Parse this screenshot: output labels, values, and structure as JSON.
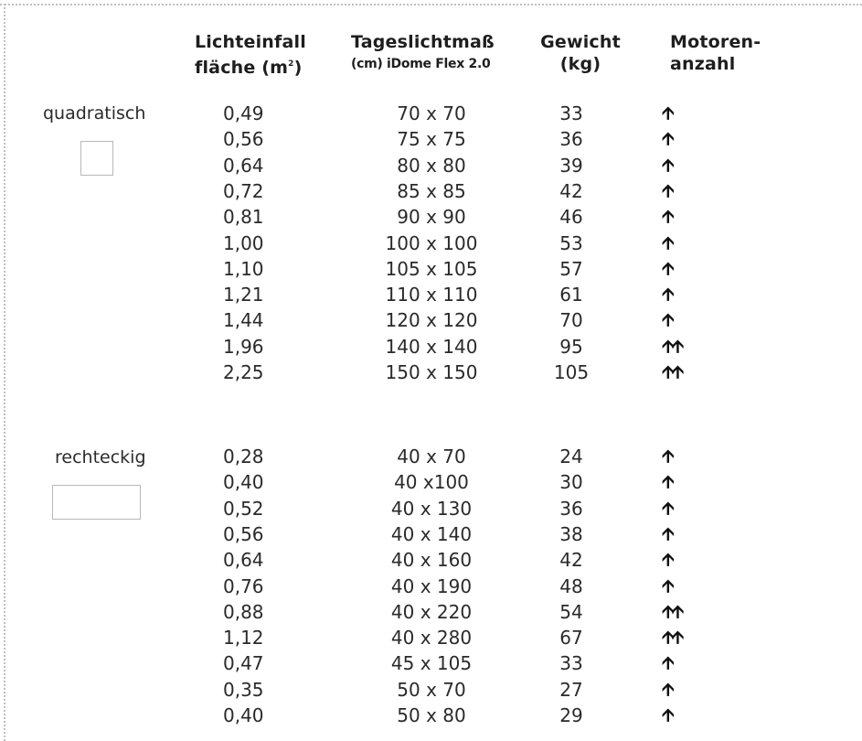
{
  "headers": {
    "area_line1": "Lichteinfall",
    "area_line2": "fläche (m",
    "area_sup": "2",
    "area_close": ")",
    "size_line1": "Tageslichtmaß",
    "size_line2": "(cm) iDome Flex 2.0",
    "weight_line1": "Gewicht",
    "weight_line2": "(kg)",
    "motors_line1": "Motoren-",
    "motors_line2": "anzahl"
  },
  "sections": [
    {
      "label": "quadratisch",
      "shape": "square",
      "rows": [
        {
          "area": "0,49",
          "size": "70 x 70",
          "weight": "33",
          "motors": "🡩"
        },
        {
          "area": "0,56",
          "size": "75 x 75",
          "weight": "36",
          "motors": "🡩"
        },
        {
          "area": "0,64",
          "size": "80 x 80",
          "weight": "39",
          "motors": "🡩"
        },
        {
          "area": "0,72",
          "size": "85 x 85",
          "weight": "42",
          "motors": "🡩"
        },
        {
          "area": "0,81",
          "size": "90 x 90",
          "weight": "46",
          "motors": "🡩"
        },
        {
          "area": "1,00",
          "size": "100 x 100",
          "weight": "53",
          "motors": "🡩"
        },
        {
          "area": "1,10",
          "size": "105 x 105",
          "weight": "57",
          "motors": "🡩"
        },
        {
          "area": "1,21",
          "size": "110 x 110",
          "weight": "61",
          "motors": "🡩"
        },
        {
          "area": "1,44",
          "size": "120 x 120",
          "weight": "70",
          "motors": "🡩"
        },
        {
          "area": "1,96",
          "size": "140 x 140",
          "weight": "95",
          "motors": "🡩🡩"
        },
        {
          "area": "2,25",
          "size": "150 x 150",
          "weight": "105",
          "motors": "🡩🡩"
        }
      ]
    },
    {
      "label": "rechteckig",
      "shape": "rectangle",
      "rows": [
        {
          "area": "0,28",
          "size": "40 x 70",
          "weight": "24",
          "motors": "🡩"
        },
        {
          "area": "0,40",
          "size": "40 x100",
          "weight": "30",
          "motors": "🡩"
        },
        {
          "area": "0,52",
          "size": "40 x 130",
          "weight": "36",
          "motors": "🡩"
        },
        {
          "area": "0,56",
          "size": "40 x 140",
          "weight": "38",
          "motors": "🡩"
        },
        {
          "area": "0,64",
          "size": "40 x 160",
          "weight": "42",
          "motors": "🡩"
        },
        {
          "area": "0,76",
          "size": "40 x 190",
          "weight": "48",
          "motors": "🡩"
        },
        {
          "area": "0,88",
          "size": "40 x 220",
          "weight": "54",
          "motors": "🡩🡩"
        },
        {
          "area": "1,12",
          "size": "40 x 280",
          "weight": "67",
          "motors": "🡩🡩"
        },
        {
          "area": "0,47",
          "size": "45 x 105",
          "weight": "33",
          "motors": "🡩"
        },
        {
          "area": "0,35",
          "size": "50 x 70",
          "weight": "27",
          "motors": "🡩"
        },
        {
          "area": "0,40",
          "size": "50 x 80",
          "weight": "29",
          "motors": "🡩"
        }
      ]
    }
  ]
}
